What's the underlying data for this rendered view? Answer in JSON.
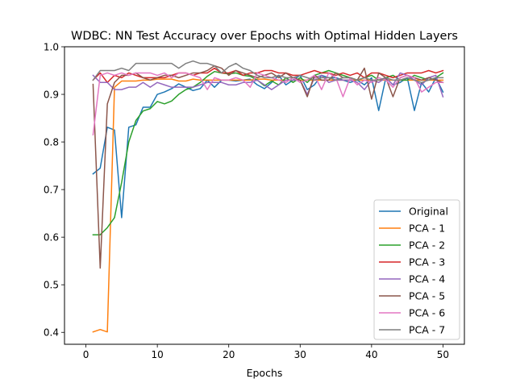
{
  "chart_data": {
    "type": "line",
    "title": "WDBC: NN Test Accuracy over Epochs with Optimal Hidden Layers",
    "xlabel": "Epochs",
    "ylabel": "",
    "xlim": [
      -3,
      53
    ],
    "ylim": [
      0.375,
      1.0
    ],
    "xticks": [
      0,
      10,
      20,
      30,
      40,
      50
    ],
    "yticks": [
      0.4,
      0.5,
      0.6,
      0.7,
      0.8,
      0.9,
      1.0
    ],
    "grid": false,
    "legend_position": "lower-right",
    "x": [
      1,
      2,
      3,
      4,
      5,
      6,
      7,
      8,
      9,
      10,
      11,
      12,
      13,
      14,
      15,
      16,
      17,
      18,
      19,
      20,
      21,
      22,
      23,
      24,
      25,
      26,
      27,
      28,
      29,
      30,
      31,
      32,
      33,
      34,
      35,
      36,
      37,
      38,
      39,
      40,
      41,
      42,
      43,
      44,
      45,
      46,
      47,
      48,
      49,
      50
    ],
    "series": [
      {
        "name": "Original",
        "color": "#1f77b4",
        "values": [
          0.733,
          0.745,
          0.831,
          0.825,
          0.641,
          0.831,
          0.836,
          0.873,
          0.873,
          0.9,
          0.905,
          0.912,
          0.922,
          0.915,
          0.908,
          0.912,
          0.93,
          0.915,
          0.93,
          0.93,
          0.928,
          0.93,
          0.932,
          0.92,
          0.912,
          0.925,
          0.94,
          0.92,
          0.93,
          0.94,
          0.91,
          0.92,
          0.94,
          0.935,
          0.935,
          0.93,
          0.925,
          0.93,
          0.92,
          0.935,
          0.866,
          0.935,
          0.92,
          0.925,
          0.935,
          0.866,
          0.925,
          0.905,
          0.935,
          0.905
        ]
      },
      {
        "name": "PCA - 1",
        "color": "#ff7f0e",
        "values": [
          0.401,
          0.406,
          0.401,
          0.915,
          0.928,
          0.928,
          0.928,
          0.93,
          0.93,
          0.932,
          0.932,
          0.932,
          0.928,
          0.928,
          0.932,
          0.93,
          0.93,
          0.93,
          0.93,
          0.93,
          0.93,
          0.93,
          0.93,
          0.932,
          0.932,
          0.93,
          0.93,
          0.93,
          0.93,
          0.93,
          0.93,
          0.93,
          0.93,
          0.93,
          0.93,
          0.93,
          0.93,
          0.93,
          0.93,
          0.93,
          0.93,
          0.93,
          0.93,
          0.93,
          0.93,
          0.93,
          0.93,
          0.93,
          0.93,
          0.93
        ]
      },
      {
        "name": "PCA - 2",
        "color": "#2ca02c",
        "values": [
          0.605,
          0.605,
          0.62,
          0.641,
          0.715,
          0.8,
          0.845,
          0.865,
          0.87,
          0.885,
          0.88,
          0.886,
          0.9,
          0.91,
          0.915,
          0.925,
          0.938,
          0.948,
          0.945,
          0.943,
          0.945,
          0.94,
          0.938,
          0.93,
          0.918,
          0.928,
          0.92,
          0.935,
          0.925,
          0.935,
          0.925,
          0.94,
          0.945,
          0.95,
          0.945,
          0.94,
          0.935,
          0.93,
          0.935,
          0.94,
          0.93,
          0.935,
          0.94,
          0.93,
          0.93,
          0.94,
          0.935,
          0.93,
          0.935,
          0.945
        ]
      },
      {
        "name": "PCA - 3",
        "color": "#d62728",
        "values": [
          0.93,
          0.945,
          0.925,
          0.94,
          0.935,
          0.945,
          0.94,
          0.935,
          0.935,
          0.935,
          0.935,
          0.94,
          0.945,
          0.945,
          0.94,
          0.945,
          0.945,
          0.955,
          0.945,
          0.945,
          0.95,
          0.94,
          0.945,
          0.945,
          0.95,
          0.95,
          0.945,
          0.945,
          0.94,
          0.94,
          0.945,
          0.95,
          0.945,
          0.945,
          0.94,
          0.945,
          0.94,
          0.945,
          0.935,
          0.945,
          0.945,
          0.94,
          0.935,
          0.94,
          0.945,
          0.945,
          0.945,
          0.95,
          0.945,
          0.95
        ]
      },
      {
        "name": "PCA - 4",
        "color": "#9467bd",
        "values": [
          0.94,
          0.925,
          0.925,
          0.91,
          0.91,
          0.915,
          0.915,
          0.925,
          0.915,
          0.925,
          0.92,
          0.915,
          0.915,
          0.915,
          0.915,
          0.92,
          0.925,
          0.925,
          0.925,
          0.92,
          0.92,
          0.925,
          0.925,
          0.93,
          0.92,
          0.91,
          0.92,
          0.93,
          0.93,
          0.93,
          0.9,
          0.935,
          0.94,
          0.925,
          0.93,
          0.93,
          0.93,
          0.925,
          0.91,
          0.93,
          0.925,
          0.935,
          0.92,
          0.945,
          0.94,
          0.93,
          0.92,
          0.935,
          0.94,
          0.895
        ]
      },
      {
        "name": "PCA - 5",
        "color": "#8c564b",
        "values": [
          0.921,
          0.535,
          0.88,
          0.925,
          0.94,
          0.94,
          0.945,
          0.935,
          0.93,
          0.935,
          0.94,
          0.94,
          0.935,
          0.94,
          0.945,
          0.945,
          0.95,
          0.96,
          0.955,
          0.94,
          0.95,
          0.945,
          0.94,
          0.935,
          0.94,
          0.945,
          0.935,
          0.945,
          0.935,
          0.93,
          0.895,
          0.94,
          0.93,
          0.93,
          0.945,
          0.935,
          0.935,
          0.93,
          0.955,
          0.89,
          0.945,
          0.935,
          0.895,
          0.935,
          0.94,
          0.935,
          0.93,
          0.935,
          0.93,
          0.925
        ]
      },
      {
        "name": "PCA - 6",
        "color": "#e377c2",
        "values": [
          0.815,
          0.94,
          0.945,
          0.94,
          0.945,
          0.94,
          0.945,
          0.945,
          0.945,
          0.94,
          0.945,
          0.935,
          0.945,
          0.945,
          0.94,
          0.935,
          0.91,
          0.935,
          0.93,
          0.93,
          0.935,
          0.93,
          0.915,
          0.945,
          0.94,
          0.935,
          0.93,
          0.925,
          0.935,
          0.925,
          0.93,
          0.94,
          0.91,
          0.945,
          0.935,
          0.895,
          0.935,
          0.92,
          0.93,
          0.925,
          0.935,
          0.93,
          0.915,
          0.935,
          0.94,
          0.935,
          0.905,
          0.915,
          0.925,
          0.925
        ]
      },
      {
        "name": "PCA - 7",
        "color": "#7f7f7f",
        "values": [
          0.93,
          0.95,
          0.95,
          0.95,
          0.955,
          0.95,
          0.965,
          0.965,
          0.965,
          0.965,
          0.965,
          0.965,
          0.955,
          0.965,
          0.97,
          0.965,
          0.965,
          0.96,
          0.945,
          0.958,
          0.965,
          0.955,
          0.95,
          0.94,
          0.935,
          0.935,
          0.94,
          0.935,
          0.935,
          0.94,
          0.935,
          0.93,
          0.935,
          0.935,
          0.93,
          0.935,
          0.935,
          0.93,
          0.935,
          0.93,
          0.93,
          0.935,
          0.93,
          0.93,
          0.935,
          0.93,
          0.925,
          0.93,
          0.935,
          0.935
        ]
      }
    ]
  }
}
